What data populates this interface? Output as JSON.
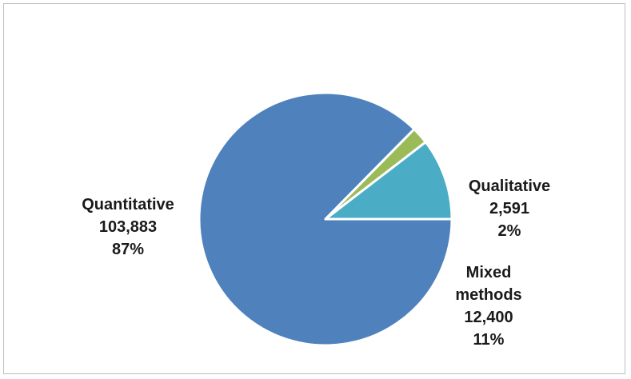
{
  "chart_data": {
    "type": "pie",
    "title": "",
    "slices": [
      {
        "name": "Quantitative",
        "label_lines": [
          "Quantitative"
        ],
        "value": 103883,
        "value_label": "103,883",
        "percent_label": "87%",
        "color": "#4f81bd"
      },
      {
        "name": "Qualitative",
        "label_lines": [
          "Qualitative"
        ],
        "value": 2591,
        "value_label": "2,591",
        "percent_label": "2%",
        "color": "#9bbb59"
      },
      {
        "name": "Mixed methods",
        "label_lines": [
          "Mixed",
          "methods"
        ],
        "value": 12400,
        "value_label": "12,400",
        "percent_label": "11%",
        "color": "#4bacc6"
      }
    ],
    "start_angle_deg": 0,
    "direction": "clockwise",
    "legend": "none",
    "data_labels": "outside"
  }
}
